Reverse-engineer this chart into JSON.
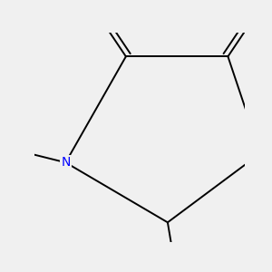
{
  "bg_color": "#f0f0f0",
  "atom_colors": {
    "O": "#ff0000",
    "N": "#0000ff",
    "F": "#ff00ff",
    "H_OH": "#008080",
    "C": "#000000"
  },
  "bond_color": "#000000",
  "font_size_atoms": 9,
  "font_size_labels": 8
}
